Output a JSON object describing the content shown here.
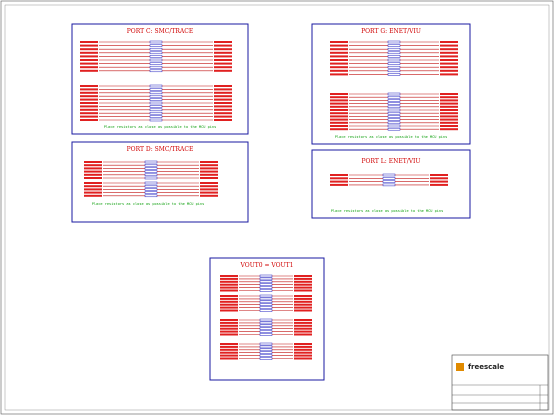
{
  "blocks": [
    {
      "title": "PORT C: SMC/TRACE",
      "note": "Place resistors as close as possible to the MCU pins"
    },
    {
      "title": "PORT G: ENET/VIU",
      "note": "Place resistors as close as possible to the MCU pins"
    },
    {
      "title": "PORT D: SMC/TRACE",
      "note": "Place resistors as close as possible to the MCU pins"
    },
    {
      "title": "PORT L: ENET/VIU",
      "note": "Place resistors as close as possible to the MCU pins"
    },
    {
      "title": "VOUT0 = VOUT1"
    }
  ],
  "title_block": {
    "logo": "freescale"
  }
}
